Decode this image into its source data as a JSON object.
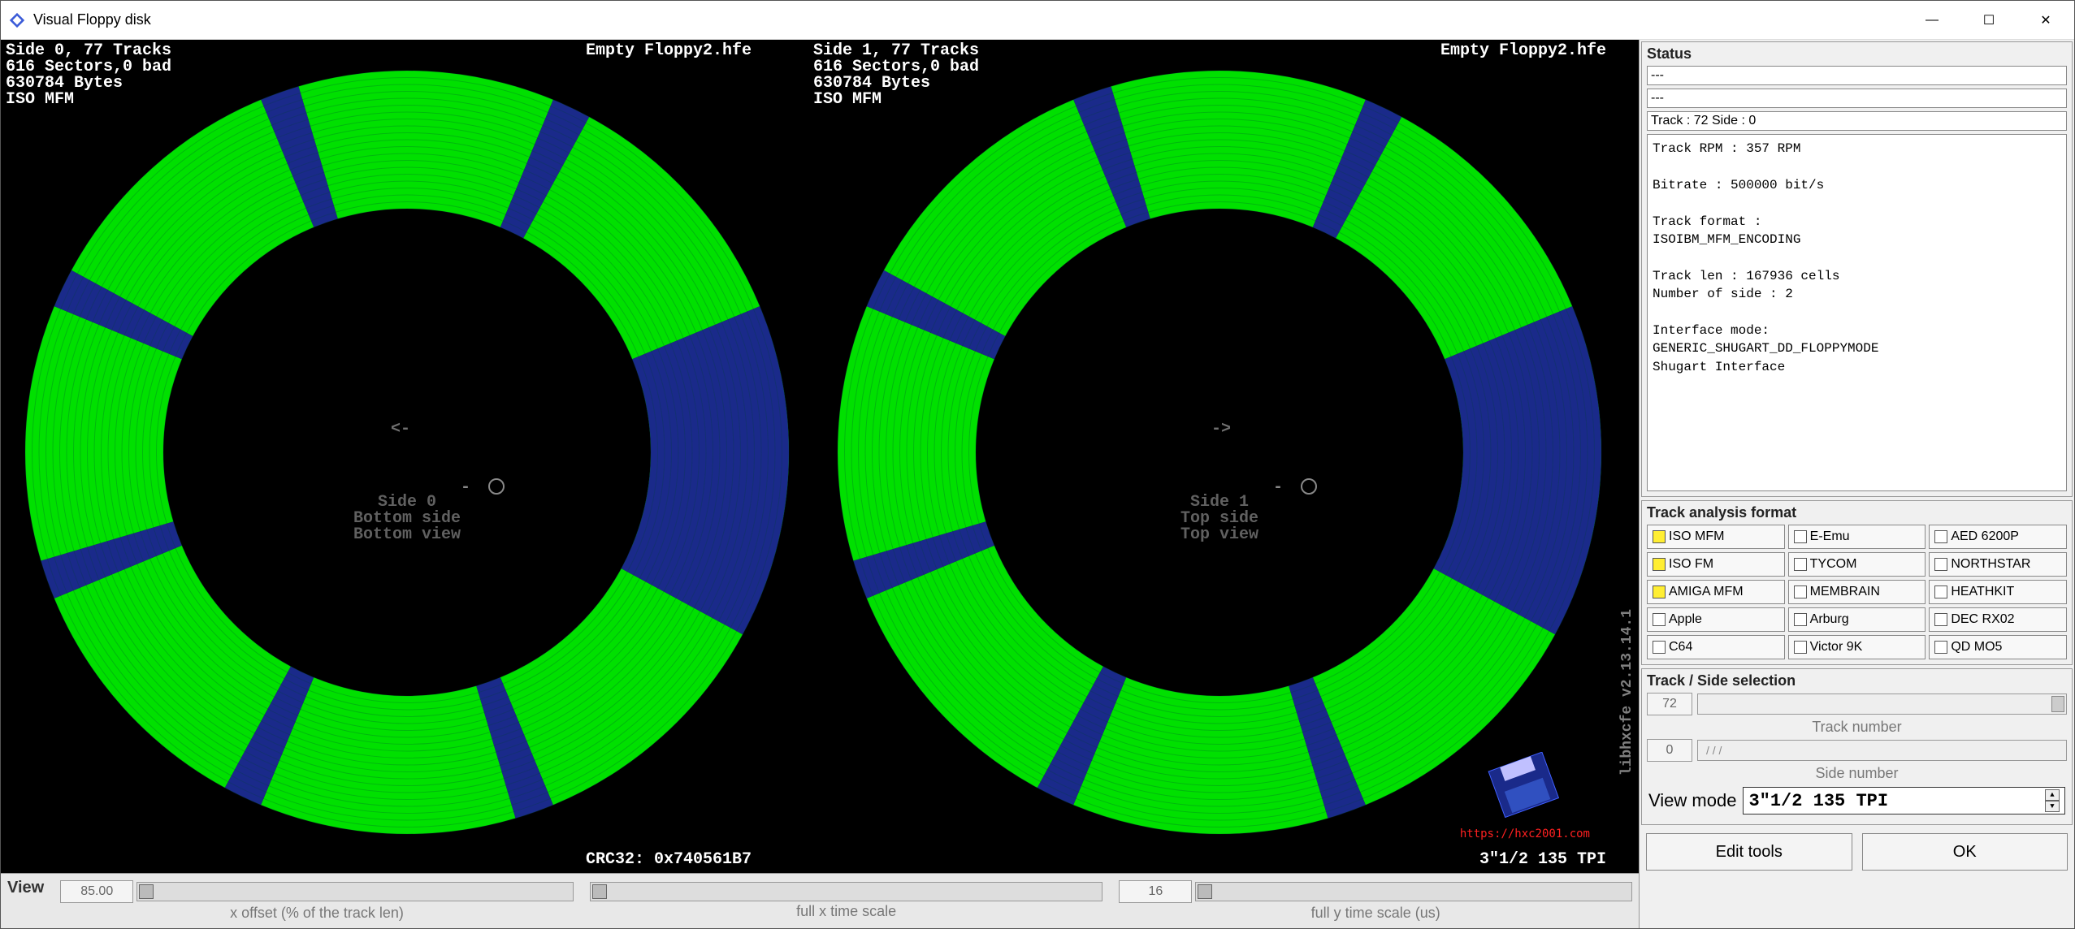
{
  "window": {
    "title": "Visual Floppy disk",
    "icon_color": "#3b5bd8"
  },
  "colors": {
    "bg_black": "#000000",
    "green": "#00e000",
    "navy": "#1a2a8a",
    "grey_text": "#707070",
    "white": "#ffffff"
  },
  "viz": {
    "filename": "Empty Floppy2.hfe",
    "side0": {
      "header_lines": "Side 0, 77 Tracks\n616 Sectors,0 bad\n630784 Bytes\nISO MFM",
      "center": "Side 0\nBottom side\nBottom view",
      "arrow": "<-"
    },
    "side1": {
      "header_lines": "Side 1, 77 Tracks\n616 Sectors,0 bad\n630784 Bytes\nISO MFM",
      "center": "Side 1\nTop side\nTop view",
      "arrow": "->"
    },
    "crc": "CRC32: 0x740561B7",
    "media": "3\"1/2 135 TPI",
    "lib_version": "libhxcfe v2.13.14.1",
    "logo_text": "HxC2001",
    "logo_url": "https://hxc2001.com",
    "ring": {
      "outer_r": 470,
      "inner_r": 300,
      "sectors": 8
    },
    "gap_deg": 6
  },
  "view_bar": {
    "label": "View",
    "xoffset": {
      "value": "85.00",
      "caption": "x offset (% of the track len)"
    },
    "xscale": {
      "value": "",
      "caption": "full x time scale"
    },
    "yscale": {
      "value": "16",
      "caption": "full y time scale (us)"
    }
  },
  "status": {
    "title": "Status",
    "line1": "---",
    "line2": "---",
    "track_side": "Track : 72 Side : 0",
    "block": "Track RPM : 357 RPM\n\nBitrate : 500000 bit/s\n\nTrack format :\nISOIBM_MFM_ENCODING\n\nTrack len : 167936 cells\nNumber of side : 2\n\nInterface mode:\nGENERIC_SHUGART_DD_FLOPPYMODE\nShugart Interface"
  },
  "formats": {
    "title": "Track analysis format",
    "items": [
      {
        "label": "ISO MFM",
        "on": true
      },
      {
        "label": "E-Emu",
        "on": false
      },
      {
        "label": "AED 6200P",
        "on": false
      },
      {
        "label": "ISO FM",
        "on": true
      },
      {
        "label": "TYCOM",
        "on": false
      },
      {
        "label": "NORTHSTAR",
        "on": false
      },
      {
        "label": "AMIGA MFM",
        "on": true
      },
      {
        "label": "MEMBRAIN",
        "on": false
      },
      {
        "label": "HEATHKIT",
        "on": false
      },
      {
        "label": "Apple",
        "on": false
      },
      {
        "label": "Arburg",
        "on": false
      },
      {
        "label": "DEC RX02",
        "on": false
      },
      {
        "label": "C64",
        "on": false
      },
      {
        "label": "Victor 9K",
        "on": false
      },
      {
        "label": "QD MO5",
        "on": false
      }
    ]
  },
  "track_side": {
    "title": "Track / Side selection",
    "track_value": "72",
    "track_caption": "Track number",
    "side_value": "0",
    "side_caption": "Side number",
    "view_mode_label": "View mode",
    "view_mode_value": "3\"1/2 135 TPI"
  },
  "buttons": {
    "edit": "Edit tools",
    "ok": "OK"
  }
}
